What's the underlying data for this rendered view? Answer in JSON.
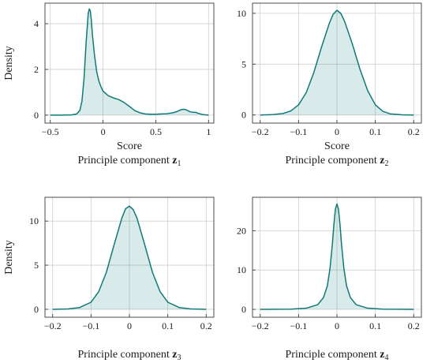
{
  "colors": {
    "line": "#0f7a78",
    "fill": "#0f7a78",
    "grid": "#cfcfcf",
    "axis": "#3a3a3a"
  },
  "chart_data": [
    {
      "type": "area",
      "xlabel": "Score",
      "ylabel": "Density",
      "caption_prefix": "Principle component ",
      "caption_var": "z",
      "caption_sub": "1",
      "xlim": [
        -0.55,
        1.05
      ],
      "ylim": [
        -0.35,
        4.9
      ],
      "xticks": [
        -0.5,
        0,
        0.5,
        1
      ],
      "xtick_labels": [
        "−0.5",
        "0",
        "0.5",
        "1"
      ],
      "yticks": [
        0,
        2,
        4
      ],
      "ytick_labels": [
        "0",
        "2",
        "4"
      ],
      "grid": true,
      "x": [
        -0.5,
        -0.4,
        -0.3,
        -0.25,
        -0.22,
        -0.2,
        -0.18,
        -0.16,
        -0.14,
        -0.13,
        -0.12,
        -0.11,
        -0.1,
        -0.08,
        -0.06,
        -0.04,
        -0.02,
        0,
        0.05,
        0.1,
        0.15,
        0.2,
        0.25,
        0.3,
        0.35,
        0.4,
        0.45,
        0.5,
        0.55,
        0.6,
        0.65,
        0.7,
        0.72,
        0.75,
        0.78,
        0.8,
        0.83,
        0.86,
        0.88,
        0.9,
        0.95,
        1.0
      ],
      "y": [
        0,
        0,
        0.01,
        0.05,
        0.2,
        0.6,
        1.6,
        3.2,
        4.45,
        4.65,
        4.55,
        4.1,
        3.5,
        2.6,
        1.9,
        1.5,
        1.25,
        1.05,
        0.85,
        0.75,
        0.68,
        0.55,
        0.38,
        0.2,
        0.1,
        0.05,
        0.04,
        0.04,
        0.05,
        0.06,
        0.09,
        0.15,
        0.2,
        0.25,
        0.25,
        0.2,
        0.14,
        0.12,
        0.12,
        0.08,
        0.02,
        0.0
      ]
    },
    {
      "type": "area",
      "xlabel": "Score",
      "ylabel": "",
      "caption_prefix": "Principle component ",
      "caption_var": "z",
      "caption_sub": "2",
      "xlim": [
        -0.22,
        0.22
      ],
      "ylim": [
        -0.8,
        11.0
      ],
      "xticks": [
        -0.2,
        -0.1,
        0,
        0.1,
        0.2
      ],
      "xtick_labels": [
        "−0.2",
        "−0.1",
        "0",
        "0.1",
        "0.2"
      ],
      "yticks": [
        0,
        5,
        10
      ],
      "ytick_labels": [
        "0",
        "5",
        "10"
      ],
      "grid": true,
      "x": [
        -0.2,
        -0.17,
        -0.14,
        -0.12,
        -0.1,
        -0.08,
        -0.06,
        -0.04,
        -0.02,
        -0.01,
        0,
        0.01,
        0.02,
        0.04,
        0.06,
        0.08,
        0.1,
        0.12,
        0.14,
        0.17,
        0.2
      ],
      "y": [
        0.0,
        0.03,
        0.15,
        0.4,
        1.0,
        2.2,
        4.2,
        6.7,
        9.0,
        9.9,
        10.3,
        10.0,
        9.2,
        7.0,
        4.5,
        2.4,
        1.0,
        0.35,
        0.1,
        0.02,
        0.0
      ]
    },
    {
      "type": "area",
      "xlabel": "",
      "ylabel": "Density",
      "caption_prefix": "Principle component ",
      "caption_var": "z",
      "caption_sub": "3",
      "xlim": [
        -0.22,
        0.22
      ],
      "ylim": [
        -0.9,
        12.7
      ],
      "xticks": [
        -0.2,
        -0.1,
        0,
        0.1,
        0.2
      ],
      "xtick_labels": [
        "−0.2",
        "−0.1",
        "0",
        "0.1",
        "0.2"
      ],
      "yticks": [
        0,
        5,
        10
      ],
      "ytick_labels": [
        "0",
        "5",
        "10"
      ],
      "grid": true,
      "x": [
        -0.2,
        -0.16,
        -0.13,
        -0.1,
        -0.08,
        -0.06,
        -0.04,
        -0.02,
        -0.01,
        0,
        0.01,
        0.02,
        0.04,
        0.06,
        0.08,
        0.1,
        0.13,
        0.16,
        0.2
      ],
      "y": [
        0.0,
        0.04,
        0.2,
        0.8,
        2.0,
        4.2,
        7.3,
        10.3,
        11.4,
        11.7,
        11.3,
        10.3,
        7.3,
        4.2,
        2.0,
        0.8,
        0.2,
        0.04,
        0.0
      ]
    },
    {
      "type": "area",
      "xlabel": "",
      "ylabel": "",
      "caption_prefix": "Principle component ",
      "caption_var": "z",
      "caption_sub": "4",
      "xlim": [
        -0.22,
        0.22
      ],
      "ylim": [
        -2.0,
        28.5
      ],
      "xticks": [
        -0.2,
        -0.1,
        0,
        0.1,
        0.2
      ],
      "xtick_labels": [
        "−0.2",
        "−0.1",
        "0",
        "0.1",
        "0.2"
      ],
      "yticks": [
        0,
        10,
        20
      ],
      "ytick_labels": [
        "0",
        "10",
        "20"
      ],
      "grid": true,
      "x": [
        -0.2,
        -0.12,
        -0.08,
        -0.05,
        -0.035,
        -0.025,
        -0.018,
        -0.012,
        -0.008,
        -0.004,
        0,
        0.004,
        0.008,
        0.012,
        0.018,
        0.025,
        0.035,
        0.05,
        0.08,
        0.12,
        0.2
      ],
      "y": [
        0.0,
        0.05,
        0.3,
        1.2,
        3.0,
        6.0,
        10.5,
        16.5,
        21.5,
        25.5,
        26.8,
        25.5,
        21.5,
        16.5,
        10.5,
        6.0,
        3.0,
        1.2,
        0.3,
        0.05,
        0.0
      ]
    }
  ]
}
